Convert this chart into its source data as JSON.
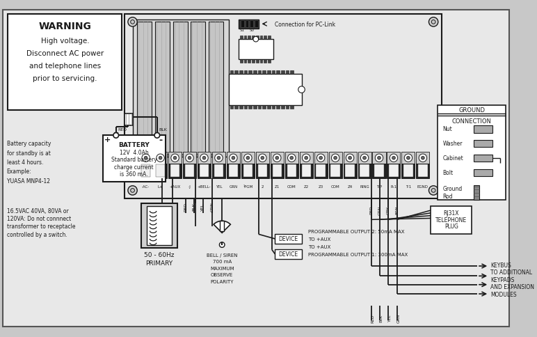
{
  "bg_color": "#c8c8c8",
  "inner_bg": "#e8e8e8",
  "white": "#ffffff",
  "dark": "#1a1a1a",
  "mid_gray": "#999999",
  "light_gray": "#d0d0d0",
  "warning_title": "WARNING",
  "warning_lines": [
    "High voltage.",
    "Disconnect AC power",
    "and telephone lines",
    "prior to servicing."
  ],
  "battery_lines": [
    "BATTERY",
    "12V  4.0Ah",
    "Standard battery",
    "charge current",
    "is 360 mA."
  ],
  "battery_caption": [
    "Battery capacity",
    "for standby is at",
    "least 4 hours.",
    "Example:",
    "YUASA MNP4-12"
  ],
  "transformer_caption": [
    "16.5VAC 40VA, 80VA or",
    "120VA: Do not connnect",
    "transformer to receptacle",
    "controlled by a switch."
  ],
  "hz_lines": [
    "50 - 60Hz",
    "PRIMARY"
  ],
  "bell_lines": [
    "BELL / SIREN",
    "700 mA",
    "MAXIMUM",
    "OBSERVE",
    "POLARITY"
  ],
  "pc_link": "Connection for PC-Link",
  "ground_title": "GROUND",
  "ground_conn": "CONNECTION",
  "ground_items": [
    "Nut",
    "Washer",
    "Cabinet",
    "Bolt",
    "Ground",
    "Rod"
  ],
  "term_labels": [
    "-AC-",
    "L+",
    "+AUX",
    "-J",
    "+BELL-",
    "YEL",
    "GRN",
    "¹PGM",
    "2",
    "Z1",
    "COM",
    "Z2",
    "Z3",
    "COM",
    "Z4",
    "RING",
    "TIP",
    "R-1",
    "T-1",
    "EGND"
  ],
  "prog2": "PROGRAMMABLE OUTPUT 2: 50mA MAX",
  "to_aux2": "TO +AUX",
  "prog1": "PROGRAMMABLE OUTPUT 1: 300mA MAX",
  "to_aux1": "TO +AUX",
  "device": "DEVICE",
  "rj31x": [
    "RJ31X",
    "TELEPHONE",
    "PLUG"
  ],
  "keybus": [
    "KEYBUS",
    "TO ADDITIONAL",
    "KEYPADS",
    "AND EXPANSION",
    "MODULES"
  ],
  "top_wires": [
    "RED",
    "BLK",
    "YEL",
    "GRN"
  ],
  "phone_wires": [
    "RED",
    "GRN",
    "GRY",
    "BRN"
  ],
  "bot_wires": [
    "RED",
    "BLK",
    "YEL",
    "GRN"
  ]
}
